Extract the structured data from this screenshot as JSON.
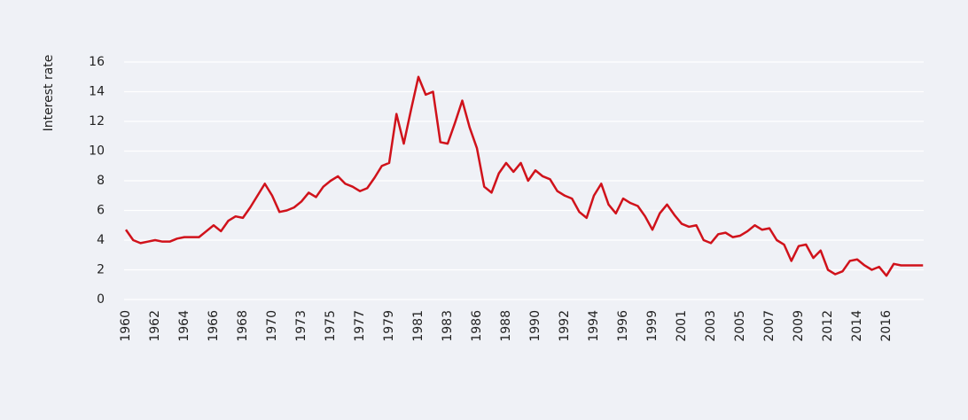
{
  "chart_data": {
    "type": "line",
    "y_label": "Interest rate",
    "categories": [
      "1960",
      null,
      null,
      null,
      "1962",
      null,
      null,
      null,
      "1964",
      null,
      null,
      null,
      "1966",
      null,
      null,
      null,
      "1968",
      null,
      null,
      null,
      "1970",
      null,
      null,
      null,
      "1973",
      null,
      null,
      null,
      "1975",
      null,
      null,
      null,
      "1977",
      null,
      null,
      null,
      "1979",
      null,
      null,
      null,
      "1981",
      null,
      null,
      null,
      "1983",
      null,
      null,
      null,
      "1986",
      null,
      null,
      null,
      "1988",
      null,
      null,
      null,
      "1990",
      null,
      null,
      null,
      "1992",
      null,
      null,
      null,
      "1994",
      null,
      null,
      null,
      "1996",
      null,
      null,
      null,
      "1999",
      null,
      null,
      null,
      "2001",
      null,
      null,
      null,
      "2003",
      null,
      null,
      null,
      "2005",
      null,
      null,
      null,
      "2007",
      null,
      null,
      null,
      "2009",
      null,
      null,
      null,
      "2012",
      null,
      null,
      null,
      "2014",
      null,
      null,
      null,
      "2016",
      null,
      null,
      null,
      null,
      null
    ],
    "series": [
      {
        "color": "#d0121b",
        "values": [
          4.7,
          4.0,
          3.8,
          3.9,
          4.0,
          3.9,
          3.9,
          4.1,
          4.2,
          4.2,
          4.2,
          4.6,
          5.0,
          4.6,
          5.3,
          5.6,
          5.5,
          6.2,
          7.0,
          7.8,
          7.0,
          5.9,
          6.0,
          6.2,
          6.6,
          7.2,
          6.9,
          7.6,
          8.0,
          8.3,
          7.8,
          7.6,
          7.3,
          7.5,
          8.2,
          9.0,
          9.2,
          12.5,
          10.5,
          12.8,
          15.0,
          13.8,
          14.0,
          10.6,
          10.5,
          11.9,
          13.4,
          11.6,
          10.2,
          7.6,
          7.2,
          8.5,
          9.2,
          8.6,
          9.2,
          8.0,
          8.7,
          8.3,
          8.1,
          7.3,
          7.0,
          6.8,
          5.9,
          5.5,
          7.0,
          7.8,
          6.4,
          5.8,
          6.8,
          6.5,
          6.3,
          5.6,
          4.7,
          5.8,
          6.4,
          5.7,
          5.1,
          4.9,
          5.0,
          4.0,
          3.8,
          4.4,
          4.5,
          4.2,
          4.3,
          4.6,
          5.0,
          4.7,
          4.8,
          4.0,
          3.7,
          2.6,
          3.6,
          3.7,
          2.8,
          3.3,
          2.0,
          1.7,
          1.9,
          2.6,
          2.7,
          2.3,
          2.0,
          2.2,
          1.6,
          2.4,
          2.3,
          2.3,
          2.3,
          2.3
        ]
      }
    ],
    "ylim": [
      0,
      16
    ],
    "yticks": [
      0,
      2,
      4,
      6,
      8,
      10,
      12,
      14,
      16
    ],
    "grid": true
  }
}
